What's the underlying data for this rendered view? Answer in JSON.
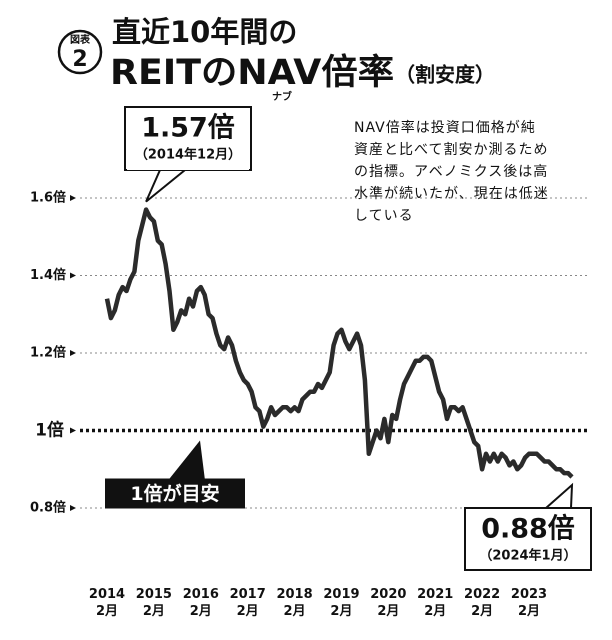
{
  "chart_data": {
    "type": "line",
    "badge": {
      "top": "図表",
      "number": "2"
    },
    "title": "直近10年間の",
    "subtitle": "REITのNAV倍率",
    "subtitle_paren": "（割安度）",
    "ruby": "ナブ",
    "note": [
      "NAV倍率は投資口価格が純",
      "資産と比べて割安か測るため",
      "の指標。アベノミクス後は高",
      "水準が続いたが、現在は低迷",
      "している"
    ],
    "annotations": [
      {
        "x": "2014-12",
        "label": "1.57倍",
        "date": "（2014年12月）"
      },
      {
        "x": "2024-01",
        "label": "0.88倍",
        "date": "（2024年1月）"
      }
    ],
    "reference": {
      "value": 1,
      "label": "1倍が目安"
    },
    "color": "#2b2b2b",
    "x": [
      "2014-02",
      "2014-03",
      "2014-04",
      "2014-05",
      "2014-06",
      "2014-07",
      "2014-08",
      "2014-09",
      "2014-10",
      "2014-11",
      "2014-12",
      "2015-01",
      "2015-02",
      "2015-03",
      "2015-04",
      "2015-05",
      "2015-06",
      "2015-07",
      "2015-08",
      "2015-09",
      "2015-10",
      "2015-11",
      "2015-12",
      "2016-01",
      "2016-02",
      "2016-03",
      "2016-04",
      "2016-05",
      "2016-06",
      "2016-07",
      "2016-08",
      "2016-09",
      "2016-10",
      "2016-11",
      "2016-12",
      "2017-01",
      "2017-02",
      "2017-03",
      "2017-04",
      "2017-05",
      "2017-06",
      "2017-07",
      "2017-08",
      "2017-09",
      "2017-10",
      "2017-11",
      "2017-12",
      "2018-01",
      "2018-02",
      "2018-03",
      "2018-04",
      "2018-05",
      "2018-06",
      "2018-07",
      "2018-08",
      "2018-09",
      "2018-10",
      "2018-11",
      "2018-12",
      "2019-01",
      "2019-02",
      "2019-03",
      "2019-04",
      "2019-05",
      "2019-06",
      "2019-07",
      "2019-08",
      "2019-09",
      "2019-10",
      "2019-11",
      "2019-12",
      "2020-01",
      "2020-02",
      "2020-03",
      "2020-04",
      "2020-05",
      "2020-06",
      "2020-07",
      "2020-08",
      "2020-09",
      "2020-10",
      "2020-11",
      "2020-12",
      "2021-01",
      "2021-02",
      "2021-03",
      "2021-04",
      "2021-05",
      "2021-06",
      "2021-07",
      "2021-08",
      "2021-09",
      "2021-10",
      "2021-11",
      "2021-12",
      "2022-01",
      "2022-02",
      "2022-03",
      "2022-04",
      "2022-05",
      "2022-06",
      "2022-07",
      "2022-08",
      "2022-09",
      "2022-10",
      "2022-11",
      "2022-12",
      "2023-01",
      "2023-02",
      "2023-03",
      "2023-04",
      "2023-05",
      "2023-06",
      "2023-07",
      "2023-08",
      "2023-09",
      "2023-10",
      "2023-11",
      "2023-12",
      "2024-01"
    ],
    "values": [
      1.34,
      1.29,
      1.31,
      1.35,
      1.37,
      1.36,
      1.39,
      1.41,
      1.49,
      1.53,
      1.57,
      1.55,
      1.54,
      1.49,
      1.48,
      1.43,
      1.36,
      1.26,
      1.28,
      1.31,
      1.3,
      1.34,
      1.32,
      1.36,
      1.37,
      1.35,
      1.3,
      1.29,
      1.25,
      1.22,
      1.21,
      1.24,
      1.22,
      1.18,
      1.15,
      1.13,
      1.12,
      1.1,
      1.06,
      1.05,
      1.01,
      1.03,
      1.06,
      1.04,
      1.05,
      1.06,
      1.06,
      1.05,
      1.06,
      1.05,
      1.08,
      1.09,
      1.1,
      1.1,
      1.12,
      1.11,
      1.13,
      1.15,
      1.22,
      1.25,
      1.26,
      1.23,
      1.21,
      1.23,
      1.25,
      1.22,
      1.13,
      0.94,
      0.97,
      1.0,
      0.98,
      1.03,
      0.97,
      1.04,
      1.03,
      1.08,
      1.12,
      1.14,
      1.16,
      1.18,
      1.18,
      1.19,
      1.19,
      1.18,
      1.14,
      1.1,
      1.08,
      1.03,
      1.06,
      1.06,
      1.05,
      1.06,
      1.03,
      1.0,
      0.97,
      0.96,
      0.9,
      0.94,
      0.92,
      0.94,
      0.92,
      0.94,
      0.93,
      0.91,
      0.92,
      0.9,
      0.91,
      0.93,
      0.94,
      0.94,
      0.94,
      0.93,
      0.92,
      0.92,
      0.91,
      0.9,
      0.9,
      0.89,
      0.89,
      0.88
    ],
    "xticks": [
      {
        "value": "2014-02",
        "label": "2014\n2月"
      },
      {
        "value": "2015-02",
        "label": "2015\n2月"
      },
      {
        "value": "2016-02",
        "label": "2016\n2月"
      },
      {
        "value": "2017-02",
        "label": "2017\n2月"
      },
      {
        "value": "2018-02",
        "label": "2018\n2月"
      },
      {
        "value": "2019-02",
        "label": "2019\n2月"
      },
      {
        "value": "2020-02",
        "label": "2020\n2月"
      },
      {
        "value": "2021-02",
        "label": "2021\n2月"
      },
      {
        "value": "2022-02",
        "label": "2022\n2月"
      },
      {
        "value": "2023-02",
        "label": "2023\n2月"
      }
    ],
    "ylim": [
      0.74,
      1.72
    ],
    "yticks": [
      {
        "value": 0.8,
        "label": "0.8倍"
      },
      {
        "value": 1,
        "label": "1倍"
      },
      {
        "value": 1.2,
        "label": "1.2倍"
      },
      {
        "value": 1.4,
        "label": "1.4倍"
      },
      {
        "value": 1.6,
        "label": "1.6倍"
      }
    ],
    "grid": true
  }
}
